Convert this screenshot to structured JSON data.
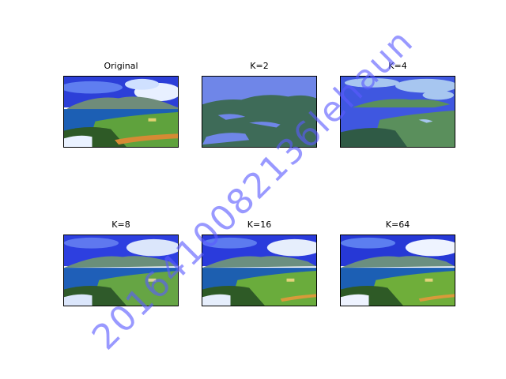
{
  "figure": {
    "panels": [
      {
        "title": "Original",
        "variant": "original"
      },
      {
        "title": "K=2",
        "variant": "k2"
      },
      {
        "title": "K=4",
        "variant": "k4"
      },
      {
        "title": "K=8",
        "variant": "k8"
      },
      {
        "title": "K=16",
        "variant": "k16"
      },
      {
        "title": "K=64",
        "variant": "k64"
      }
    ]
  },
  "watermark": "2016410082136lehaun",
  "palette": {
    "k2": {
      "light": "#6f86e8",
      "dark": "#3e6b58"
    },
    "k4": {
      "sky": "#3f57e0",
      "cloud": "#a7c6f0",
      "land": "#5a8f5c",
      "dark": "#2f5a45"
    },
    "full": {
      "sky": "#2638d6",
      "cloud": "#e6eefc",
      "hill": "#6b8f80",
      "sea": "#1d5fb0",
      "grass": "#6fae3a",
      "tree": "#2e5a26",
      "sand": "#d89a3a"
    }
  }
}
